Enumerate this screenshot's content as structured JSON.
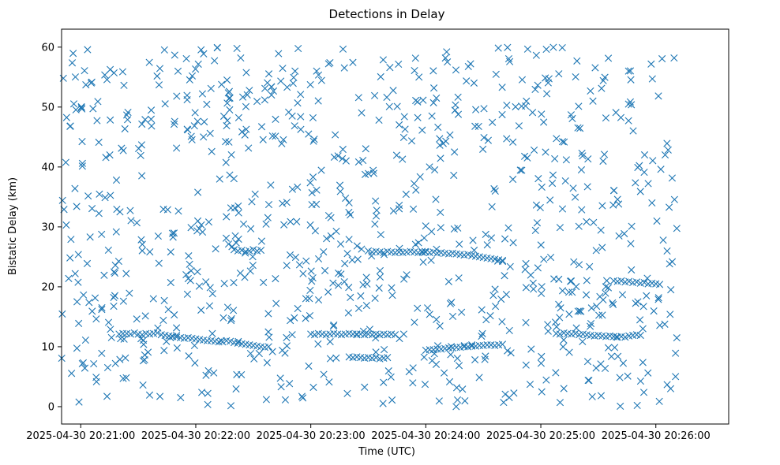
{
  "chart_data": {
    "type": "scatter",
    "title": "Detections in Delay",
    "xlabel": "Time (UTC)",
    "ylabel": "Bistatic Delay (km)",
    "marker": "x",
    "color": "#1f77b4",
    "xlim_seconds_after_20_21_00": [
      -10,
      338
    ],
    "ylim": [
      -2.9,
      63.0
    ],
    "x_ticks": [
      {
        "value": 0,
        "label": "2025-04-30 20:21:00"
      },
      {
        "value": 60,
        "label": "2025-04-30 20:22:00"
      },
      {
        "value": 120,
        "label": "2025-04-30 20:23:00"
      },
      {
        "value": 180,
        "label": "2025-04-30 20:24:00"
      },
      {
        "value": 240,
        "label": "2025-04-30 20:25:00"
      },
      {
        "value": 300,
        "label": "2025-04-30 20:26:00"
      }
    ],
    "y_ticks": [
      {
        "value": 0,
        "label": "0"
      },
      {
        "value": 10,
        "label": "10"
      },
      {
        "value": 20,
        "label": "20"
      },
      {
        "value": 30,
        "label": "30"
      },
      {
        "value": 40,
        "label": "40"
      },
      {
        "value": 50,
        "label": "50"
      },
      {
        "value": 60,
        "label": "60"
      }
    ],
    "x_range_of_detections_seconds": [
      -12,
      311
    ],
    "tracks": [
      {
        "name": "track-near-12km",
        "points": [
          [
            20,
            12.1
          ],
          [
            22,
            12.2
          ],
          [
            24,
            12.2
          ],
          [
            26,
            12.1
          ],
          [
            28,
            12.3
          ],
          [
            30,
            12.1
          ],
          [
            32,
            12.0
          ],
          [
            34,
            12.2
          ],
          [
            36,
            12.1
          ],
          [
            38,
            12.2
          ],
          [
            40,
            12.3
          ],
          [
            42,
            12.0
          ],
          [
            44,
            11.9
          ],
          [
            46,
            11.8
          ],
          [
            48,
            11.7
          ],
          [
            50,
            11.6
          ],
          [
            52,
            11.5
          ],
          [
            54,
            11.4
          ],
          [
            56,
            11.5
          ],
          [
            58,
            11.4
          ],
          [
            60,
            11.3
          ],
          [
            62,
            11.2
          ],
          [
            64,
            11.1
          ],
          [
            66,
            11.0
          ],
          [
            68,
            11.0
          ],
          [
            70,
            10.9
          ],
          [
            72,
            10.8
          ],
          [
            74,
            10.8
          ],
          [
            76,
            11.0
          ],
          [
            78,
            10.9
          ],
          [
            80,
            10.7
          ],
          [
            82,
            10.6
          ],
          [
            84,
            10.5
          ],
          [
            86,
            10.4
          ],
          [
            88,
            10.3
          ],
          [
            90,
            10.2
          ],
          [
            92,
            10.1
          ],
          [
            94,
            10.0
          ],
          [
            96,
            9.9
          ],
          [
            98,
            10.0
          ]
        ]
      },
      {
        "name": "track-near-12km-b",
        "points": [
          [
            120,
            12.1
          ],
          [
            122,
            12.0
          ],
          [
            124,
            12.2
          ],
          [
            126,
            12.1
          ],
          [
            128,
            12.0
          ],
          [
            130,
            12.1
          ],
          [
            132,
            12.2
          ],
          [
            134,
            12.1
          ],
          [
            136,
            12.0
          ],
          [
            138,
            12.1
          ],
          [
            140,
            12.2
          ],
          [
            142,
            12.1
          ],
          [
            144,
            12.0
          ],
          [
            146,
            12.1
          ],
          [
            148,
            12.0
          ],
          [
            150,
            12.1
          ],
          [
            152,
            12.0
          ],
          [
            154,
            12.1
          ],
          [
            156,
            12.0
          ],
          [
            158,
            12.1
          ],
          [
            160,
            12.0
          ],
          [
            162,
            12.1
          ],
          [
            164,
            12.0
          ]
        ]
      },
      {
        "name": "track-near-8km",
        "points": [
          [
            140,
            8.3
          ],
          [
            142,
            8.2
          ],
          [
            144,
            8.3
          ],
          [
            146,
            8.2
          ],
          [
            148,
            8.1
          ],
          [
            150,
            8.2
          ],
          [
            152,
            8.1
          ],
          [
            154,
            8.2
          ],
          [
            156,
            8.0
          ],
          [
            158,
            8.1
          ],
          [
            160,
            8.2
          ]
        ]
      },
      {
        "name": "track-near-25km",
        "points": [
          [
            80,
            26.2
          ],
          [
            82,
            26.0
          ],
          [
            84,
            26.1
          ],
          [
            86,
            25.9
          ],
          [
            88,
            26.0
          ],
          [
            90,
            26.2
          ],
          [
            92,
            26.0
          ],
          [
            94,
            26.1
          ],
          [
            150,
            26.0
          ],
          [
            152,
            25.8
          ],
          [
            154,
            25.9
          ],
          [
            156,
            25.8
          ],
          [
            158,
            25.7
          ],
          [
            160,
            25.9
          ],
          [
            162,
            25.8
          ],
          [
            164,
            25.7
          ],
          [
            166,
            25.8
          ],
          [
            168,
            25.7
          ],
          [
            170,
            25.8
          ],
          [
            172,
            25.9
          ],
          [
            174,
            25.8
          ],
          [
            176,
            25.7
          ],
          [
            178,
            25.9
          ],
          [
            180,
            25.8
          ],
          [
            182,
            25.7
          ],
          [
            184,
            25.8
          ],
          [
            186,
            25.6
          ],
          [
            188,
            25.7
          ],
          [
            190,
            25.6
          ],
          [
            192,
            25.5
          ],
          [
            194,
            25.6
          ],
          [
            196,
            25.5
          ],
          [
            198,
            25.4
          ],
          [
            200,
            25.3
          ],
          [
            202,
            25.4
          ],
          [
            204,
            25.2
          ],
          [
            206,
            25.1
          ],
          [
            208,
            25.0
          ],
          [
            210,
            24.9
          ],
          [
            212,
            24.8
          ],
          [
            214,
            24.7
          ],
          [
            216,
            24.6
          ],
          [
            218,
            24.5
          ],
          [
            220,
            24.4
          ]
        ]
      },
      {
        "name": "track-near-10km",
        "points": [
          [
            180,
            9.4
          ],
          [
            182,
            9.5
          ],
          [
            184,
            9.5
          ],
          [
            186,
            9.6
          ],
          [
            188,
            9.6
          ],
          [
            190,
            9.7
          ],
          [
            192,
            9.8
          ],
          [
            194,
            9.8
          ],
          [
            196,
            9.9
          ],
          [
            198,
            9.9
          ],
          [
            200,
            10.0
          ],
          [
            202,
            10.0
          ],
          [
            204,
            10.1
          ],
          [
            206,
            10.1
          ],
          [
            208,
            10.2
          ],
          [
            210,
            10.2
          ],
          [
            212,
            10.3
          ],
          [
            214,
            10.3
          ],
          [
            216,
            10.2
          ],
          [
            218,
            10.3
          ],
          [
            220,
            10.4
          ]
        ]
      },
      {
        "name": "track-near-12km-c",
        "points": [
          [
            248,
            12.2
          ],
          [
            250,
            12.1
          ],
          [
            252,
            12.3
          ],
          [
            254,
            12.2
          ],
          [
            256,
            12.1
          ],
          [
            258,
            12.2
          ],
          [
            260,
            12.0
          ],
          [
            262,
            12.1
          ],
          [
            264,
            12.0
          ],
          [
            266,
            11.9
          ],
          [
            268,
            11.8
          ],
          [
            270,
            11.9
          ],
          [
            272,
            11.8
          ],
          [
            274,
            11.7
          ],
          [
            276,
            11.8
          ],
          [
            278,
            11.7
          ],
          [
            280,
            11.6
          ],
          [
            282,
            11.7
          ],
          [
            284,
            11.6
          ],
          [
            286,
            11.8
          ],
          [
            288,
            11.9
          ],
          [
            290,
            12.0
          ],
          [
            292,
            11.9
          ]
        ]
      },
      {
        "name": "track-near-21km",
        "points": [
          [
            278,
            21.0
          ],
          [
            280,
            20.9
          ],
          [
            282,
            21.0
          ],
          [
            284,
            20.8
          ],
          [
            286,
            20.9
          ],
          [
            288,
            20.7
          ],
          [
            290,
            20.8
          ],
          [
            292,
            20.6
          ],
          [
            294,
            20.7
          ],
          [
            296,
            20.5
          ],
          [
            298,
            20.6
          ],
          [
            300,
            20.5
          ],
          [
            302,
            20.4
          ]
        ]
      }
    ]
  }
}
